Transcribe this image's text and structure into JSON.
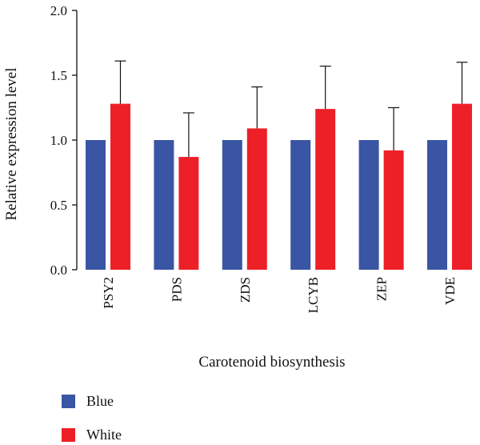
{
  "chart_data": {
    "type": "bar",
    "categories": [
      "PSY2",
      "PDS",
      "ZDS",
      "LCYB",
      "ZEP",
      "VDE"
    ],
    "series": [
      {
        "name": "Blue",
        "color": "#3a55a4",
        "values": [
          1.0,
          1.0,
          1.0,
          1.0,
          1.0,
          1.0
        ]
      },
      {
        "name": "White",
        "color": "#ee2027",
        "values": [
          1.28,
          0.87,
          1.09,
          1.24,
          0.92,
          1.28
        ],
        "error": [
          0.33,
          0.34,
          0.32,
          0.33,
          0.33,
          0.32
        ]
      }
    ],
    "xlabel": "Carotenoid biosynthesis",
    "ylabel": "Relative expression level",
    "ylim": [
      0,
      2.0
    ],
    "yticks": [
      0.0,
      0.5,
      1.0,
      1.5,
      2.0
    ],
    "ytick_labels": [
      "0.0",
      "0.5",
      "1.0",
      "1.5",
      "2.0"
    ],
    "grid": false,
    "legend_position": "bottom-left"
  }
}
